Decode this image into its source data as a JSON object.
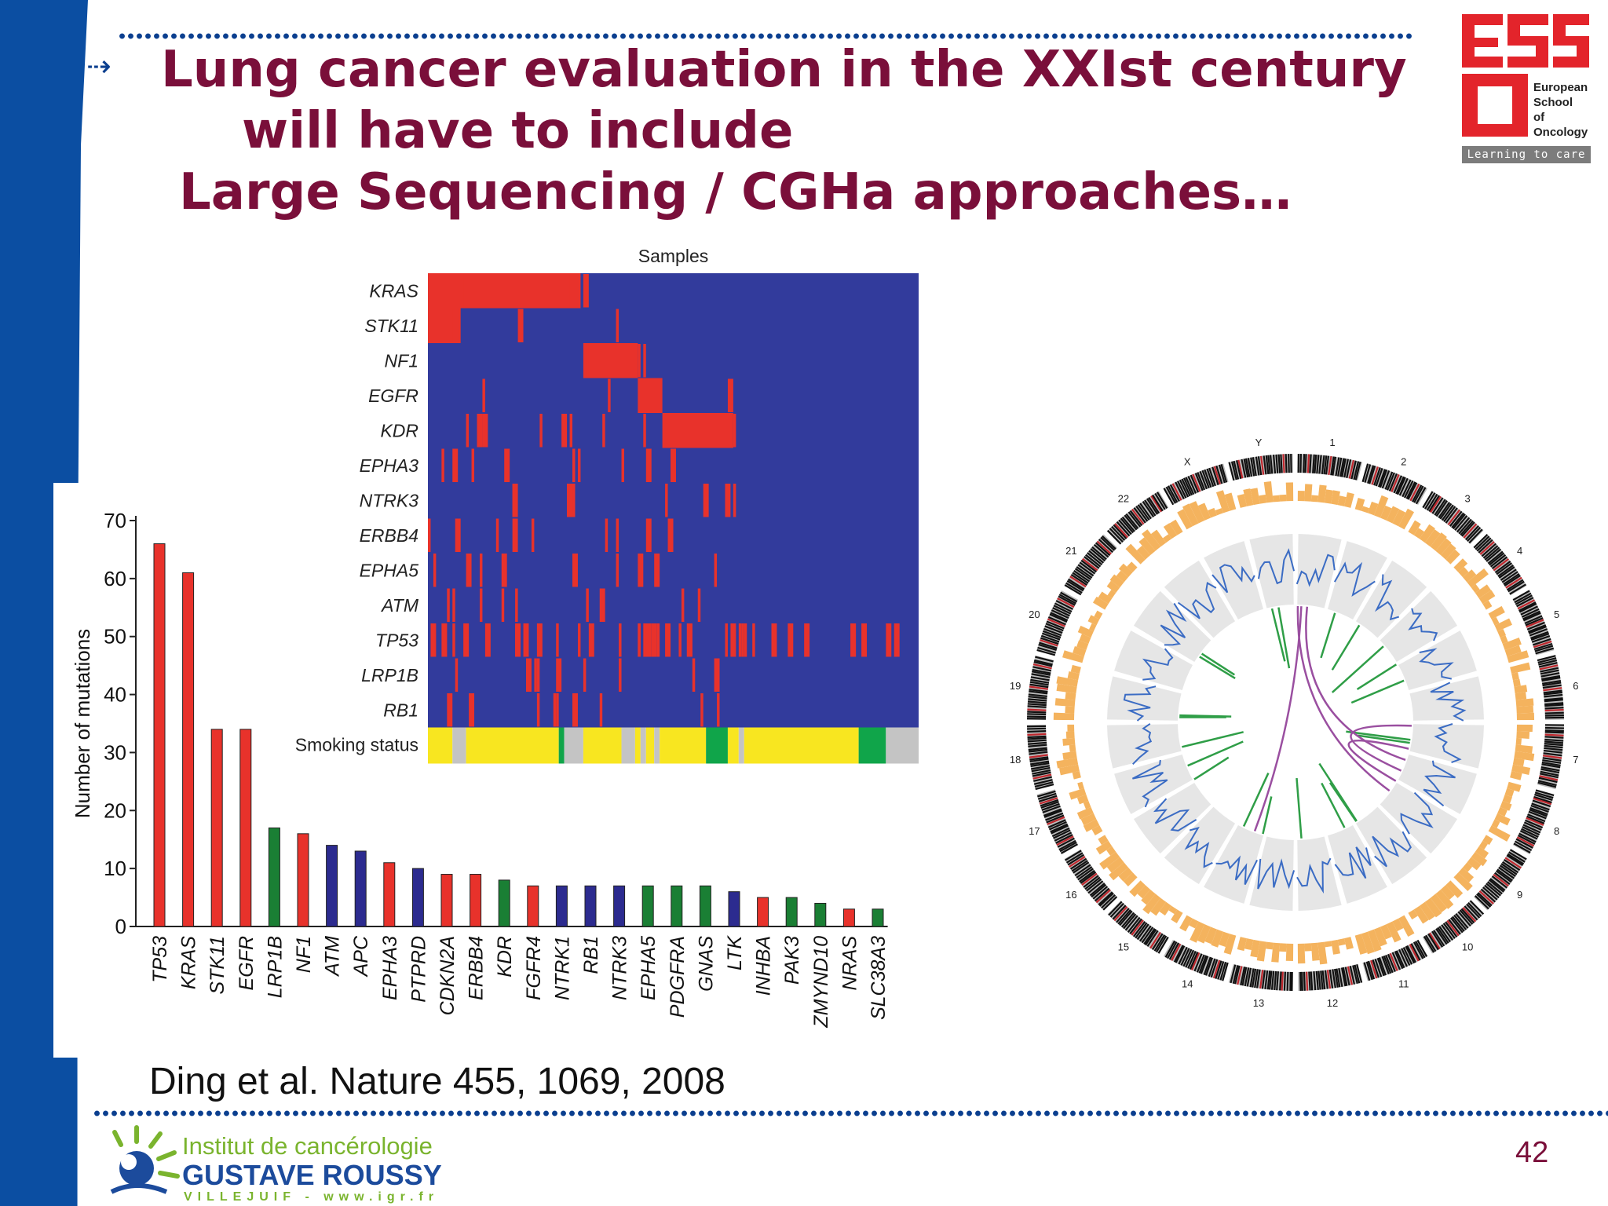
{
  "slide": {
    "title_lines": [
      "Lung cancer evaluation in the XXIst century",
      "will have to include",
      "Large Sequencing / CGHa approaches…"
    ],
    "arrow": "⇢",
    "citation": "Ding et al. Nature 455, 1069, 2008",
    "page_number": "42",
    "accent_color": "#7a0f3a",
    "brand_blue": "#0b4ea2"
  },
  "eso_logo": {
    "letters": "ESO",
    "school_lines": [
      "European",
      "School",
      "of",
      "Oncology"
    ],
    "tagline": "Learning to care",
    "color": "#e3242b"
  },
  "igr_logo": {
    "line1": "Institut de cancérologie",
    "line2": "GUSTAVE ROUSSY",
    "line3": "VILLEJUIF - www.igr.fr"
  },
  "heatmap": {
    "column_title": "Samples",
    "genes": [
      "KRAS",
      "STK11",
      "NF1",
      "EGFR",
      "KDR",
      "EPHA3",
      "NTRK3",
      "ERBB4",
      "EPHA5",
      "ATM",
      "TP53",
      "LRP1B",
      "RB1"
    ],
    "status_label": "Smoking status",
    "colors": {
      "background": "#323b9c",
      "mutated": "#e8322b",
      "smoker": "#f8e620",
      "never": "#10a54a",
      "unknown": "#c4c4c4"
    }
  },
  "circos": {
    "chromosome_labels": [
      "1",
      "2",
      "3",
      "4",
      "5",
      "6",
      "7",
      "8",
      "9",
      "10",
      "11",
      "12",
      "13",
      "14",
      "15",
      "16",
      "17",
      "18",
      "19",
      "20",
      "21",
      "22",
      "X",
      "Y"
    ]
  },
  "chart_data": {
    "type": "bar",
    "ylabel": "Number of mutations",
    "xlabel": "",
    "ylim": [
      0,
      70
    ],
    "yticks": [
      0,
      10,
      20,
      30,
      40,
      50,
      60,
      70
    ],
    "categories": [
      "TP53",
      "KRAS",
      "STK11",
      "EGFR",
      "LRP1B",
      "NF1",
      "ATM",
      "APC",
      "EPHA3",
      "PTPRD",
      "CDKN2A",
      "ERBB4",
      "KDR",
      "FGFR4",
      "NTRK1",
      "RB1",
      "NTRK3",
      "EPHA5",
      "PDGFRA",
      "GNAS",
      "LTK",
      "INHBA",
      "PAK3",
      "ZMYND10",
      "NRAS",
      "SLC38A3"
    ],
    "values": [
      66,
      61,
      34,
      34,
      17,
      16,
      14,
      13,
      11,
      10,
      9,
      9,
      8,
      7,
      7,
      7,
      7,
      7,
      7,
      7,
      6,
      5,
      5,
      4,
      3,
      3
    ],
    "colors": [
      "red",
      "red",
      "red",
      "red",
      "green",
      "red",
      "blue",
      "blue",
      "red",
      "blue",
      "red",
      "red",
      "green",
      "red",
      "blue",
      "blue",
      "blue",
      "green",
      "green",
      "green",
      "blue",
      "red",
      "green",
      "green",
      "red",
      "green"
    ],
    "palette": {
      "red": "#e8322b",
      "green": "#1a7f34",
      "blue": "#2c2b8f"
    },
    "grid": false,
    "legend": "none"
  }
}
